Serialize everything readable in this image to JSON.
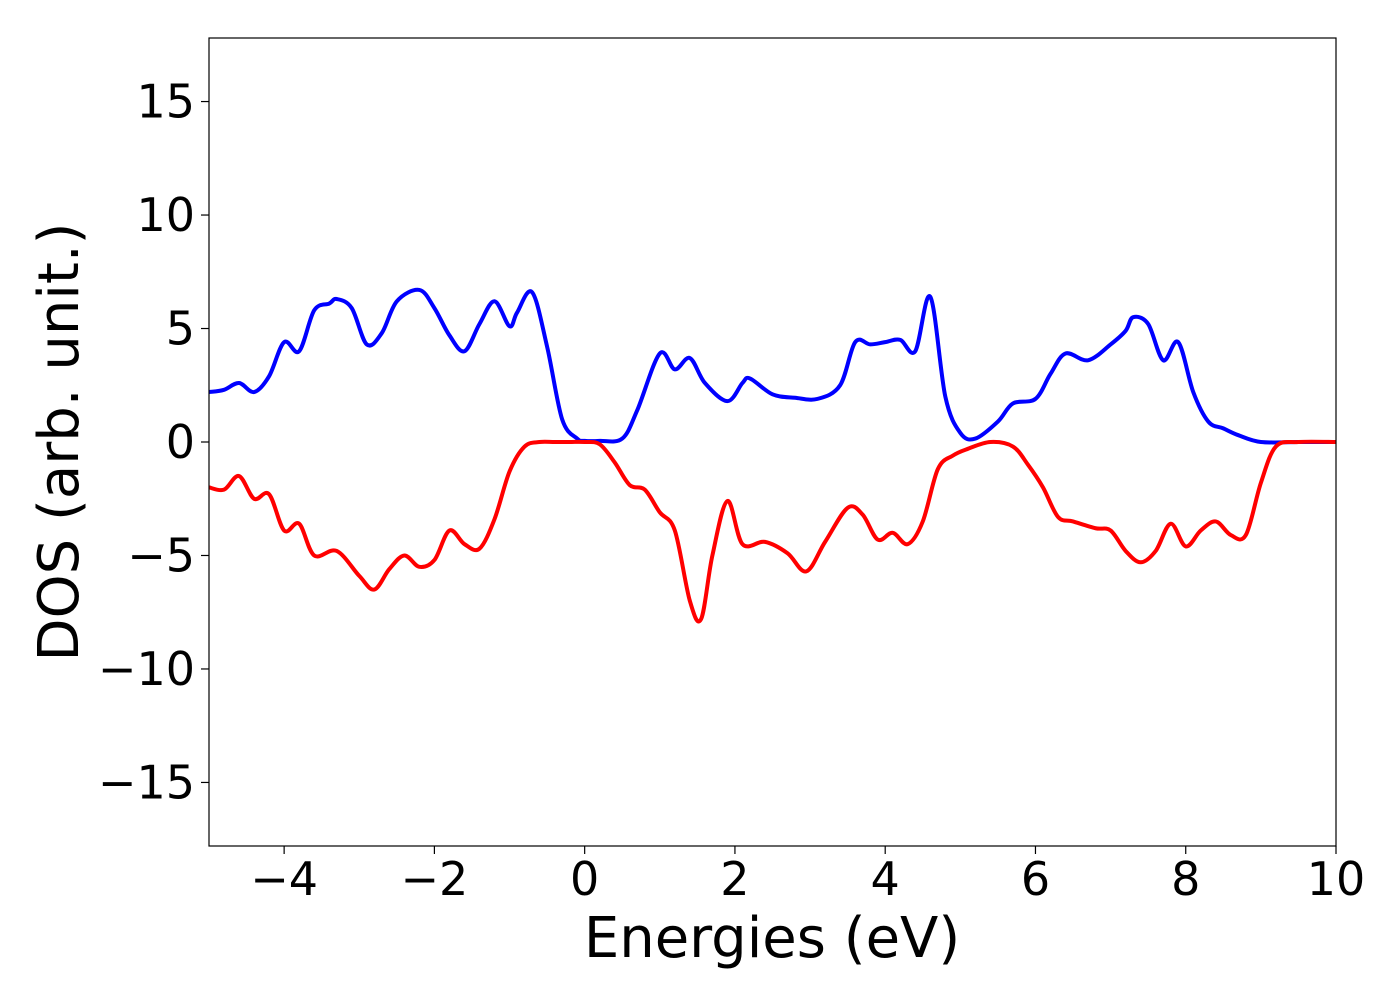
{
  "chart_data": {
    "type": "line",
    "title": "",
    "xlabel": "Energies (eV)",
    "ylabel": "DOS (arb. unit.)",
    "xlim": [
      -5,
      10
    ],
    "ylim": [
      -17.8,
      17.8
    ],
    "grid": false,
    "legend": "none",
    "xticks": [
      -4,
      -2,
      0,
      2,
      4,
      6,
      8,
      10
    ],
    "xtick_labels": [
      "−4",
      "−2",
      "0",
      "2",
      "4",
      "6",
      "8",
      "10"
    ],
    "yticks": [
      15,
      10,
      5,
      0,
      -5,
      -10,
      -15
    ],
    "ytick_labels": [
      "15",
      "10",
      "5",
      "0",
      "−5",
      "−10",
      "−15"
    ],
    "series": [
      {
        "color": "#0000ff",
        "x": [
          -5.0,
          -4.8,
          -4.6,
          -4.4,
          -4.2,
          -4.0,
          -3.8,
          -3.6,
          -3.4,
          -3.3,
          -3.1,
          -2.9,
          -2.7,
          -2.5,
          -2.2,
          -2.0,
          -1.8,
          -1.6,
          -1.4,
          -1.2,
          -1.0,
          -0.9,
          -0.7,
          -0.5,
          -0.3,
          -0.1,
          0.0,
          0.2,
          0.5,
          0.7,
          1.0,
          1.2,
          1.4,
          1.6,
          1.9,
          2.1,
          2.2,
          2.5,
          2.8,
          3.1,
          3.4,
          3.6,
          3.8,
          4.0,
          4.2,
          4.4,
          4.6,
          4.8,
          5.0,
          5.2,
          5.5,
          5.7,
          6.0,
          6.2,
          6.4,
          6.7,
          7.0,
          7.2,
          7.3,
          7.5,
          7.7,
          7.9,
          8.1,
          8.3,
          8.5,
          8.7,
          9.0,
          9.5,
          10.0
        ],
        "y": [
          2.2,
          2.3,
          2.6,
          2.2,
          2.9,
          4.4,
          4.0,
          5.8,
          6.1,
          6.3,
          5.9,
          4.3,
          4.8,
          6.2,
          6.7,
          5.9,
          4.7,
          4.0,
          5.2,
          6.2,
          5.1,
          5.7,
          6.6,
          4.2,
          1.0,
          0.15,
          0.05,
          0.05,
          0.15,
          1.4,
          3.9,
          3.2,
          3.7,
          2.6,
          1.8,
          2.6,
          2.8,
          2.1,
          1.95,
          1.9,
          2.5,
          4.4,
          4.3,
          4.4,
          4.5,
          4.0,
          6.4,
          2.0,
          0.4,
          0.15,
          0.9,
          1.7,
          1.9,
          3.0,
          3.9,
          3.6,
          4.3,
          4.9,
          5.5,
          5.2,
          3.6,
          4.4,
          2.2,
          0.9,
          0.6,
          0.3,
          0.0,
          0.0,
          0.0
        ]
      },
      {
        "color": "#ff0000",
        "x": [
          -5.0,
          -4.8,
          -4.6,
          -4.4,
          -4.2,
          -4.0,
          -3.8,
          -3.6,
          -3.3,
          -3.0,
          -2.8,
          -2.6,
          -2.4,
          -2.2,
          -2.0,
          -1.8,
          -1.6,
          -1.4,
          -1.2,
          -1.0,
          -0.8,
          -0.6,
          -0.4,
          -0.2,
          0.0,
          0.2,
          0.4,
          0.6,
          0.8,
          1.0,
          1.2,
          1.4,
          1.55,
          1.7,
          1.9,
          2.1,
          2.4,
          2.7,
          2.95,
          3.2,
          3.5,
          3.7,
          3.9,
          4.1,
          4.3,
          4.5,
          4.7,
          4.9,
          5.1,
          5.4,
          5.7,
          5.9,
          6.1,
          6.3,
          6.5,
          6.8,
          7.0,
          7.2,
          7.4,
          7.6,
          7.8,
          8.0,
          8.2,
          8.4,
          8.6,
          8.8,
          9.0,
          9.2,
          9.5,
          10.0
        ],
        "y": [
          -2.0,
          -2.1,
          -1.5,
          -2.5,
          -2.3,
          -3.9,
          -3.6,
          -5.0,
          -4.8,
          -5.9,
          -6.5,
          -5.6,
          -5.0,
          -5.5,
          -5.2,
          -3.9,
          -4.5,
          -4.7,
          -3.4,
          -1.3,
          -0.2,
          0.0,
          0.0,
          0.0,
          0.0,
          -0.1,
          -0.9,
          -1.9,
          -2.1,
          -3.1,
          -3.9,
          -7.0,
          -7.8,
          -5.0,
          -2.6,
          -4.5,
          -4.4,
          -4.9,
          -5.7,
          -4.4,
          -2.9,
          -3.2,
          -4.3,
          -4.0,
          -4.5,
          -3.5,
          -1.2,
          -0.6,
          -0.3,
          0.0,
          -0.2,
          -1.0,
          -2.0,
          -3.3,
          -3.5,
          -3.8,
          -3.9,
          -4.8,
          -5.3,
          -4.8,
          -3.6,
          -4.6,
          -3.9,
          -3.5,
          -4.1,
          -4.1,
          -1.8,
          -0.2,
          0.0,
          0.0
        ]
      }
    ]
  }
}
